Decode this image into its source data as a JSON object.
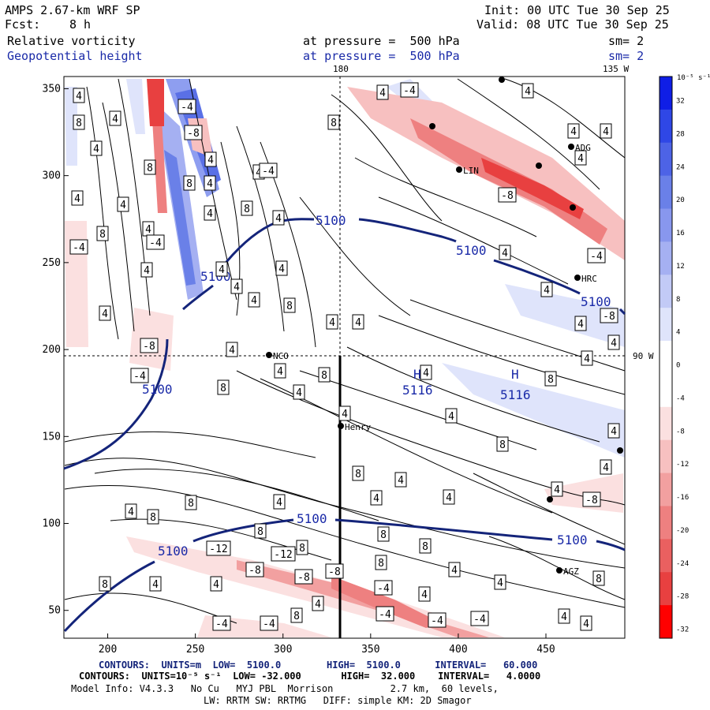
{
  "header": {
    "model": "AMPS 2.67-km WRF SP",
    "init": "Init: 00 UTC Tue 30 Sep 25",
    "fcst_label": "Fcst:",
    "fcst_value": "8 h",
    "valid": "Valid: 08 UTC Tue 30 Sep 25",
    "field1": "Relative vorticity",
    "field1_level": "at pressure =  500 hPa",
    "field1_smooth": "sm= 2",
    "field2": "Geopotential height",
    "field2_level": "at pressure =  500 hPa",
    "field2_smooth": "sm= 2",
    "lon180": "180",
    "lon135w": "135 W",
    "lat90s": "90 W"
  },
  "colors": {
    "height_contour": "#14247a",
    "neg_max": "#ff0000",
    "pos_max": "#0000ee"
  },
  "colorbar": {
    "unit": "10⁻⁵ s⁻¹",
    "tick_labels": [
      "32",
      "28",
      "24",
      "20",
      "16",
      "12",
      "8",
      "4",
      "0",
      "-4",
      "-8",
      "-12",
      "-16",
      "-20",
      "-24",
      "-28",
      "-32"
    ],
    "colors": [
      "#0f1ee6",
      "#2f47e6",
      "#4d63e6",
      "#6a80e8",
      "#8897ee",
      "#a5b0f2",
      "#c2caf6",
      "#dfe4fb",
      "#ffffff",
      "#ffffff",
      "#fbe0e0",
      "#f7c0c0",
      "#f2a0a0",
      "#ee8080",
      "#ea6060",
      "#e84040",
      "#ff0000"
    ]
  },
  "stations": [
    {
      "name": "NCO",
      "x": 341,
      "y": 450
    },
    {
      "name": "Henry",
      "x": 432,
      "y": 540
    },
    {
      "name": "LIN",
      "x": 582,
      "y": 215
    },
    {
      "name": "ADG",
      "x": 724,
      "y": 186
    },
    {
      "name": "HRC",
      "x": 732,
      "y": 352
    },
    {
      "name": "AGZ",
      "x": 709,
      "y": 723
    }
  ],
  "station_names": [
    "NCO",
    "Henry",
    "LIN",
    "ADG",
    "HRC",
    "AGZ"
  ],
  "chart_data": {
    "type": "contour",
    "title": "Relative vorticity and Geopotential height at 500 hPa",
    "x_ticks": [
      200,
      250,
      300,
      350,
      400,
      450
    ],
    "y_ticks": [
      50,
      100,
      150,
      200,
      250,
      300,
      350
    ],
    "xlim": [
      175,
      495
    ],
    "ylim": [
      34,
      357
    ],
    "height_contours": {
      "units": "m",
      "low": 5100.0,
      "high": 5100.0,
      "interval": 60.0,
      "labels": [
        "5100",
        "5100",
        "5100",
        "5100",
        "5100",
        "5100",
        "5100",
        "5100"
      ],
      "high_centers": [
        "5116",
        "5116"
      ]
    },
    "vorticity_contours": {
      "units": "10^-5 s^-1",
      "low": -32.0,
      "high": 32.0,
      "interval": 4.0,
      "labels_pos": [
        "4",
        "8",
        "4",
        "4",
        "8",
        "4",
        "8",
        "4",
        "4",
        "4",
        "4",
        "8",
        "4",
        "4",
        "4",
        "8",
        "4",
        "4",
        "4",
        "8",
        "4",
        "4",
        "4",
        "4",
        "8",
        "4",
        "4",
        "4",
        "4",
        "8",
        "4",
        "8",
        "4",
        "4",
        "4",
        "8",
        "8",
        "4",
        "4",
        "4",
        "4",
        "4",
        "4",
        "4",
        "4",
        "4",
        "4",
        "4",
        "8",
        "4",
        "8",
        "4",
        "8",
        "8",
        "4",
        "4",
        "8",
        "8",
        "8",
        "8",
        "4",
        "4",
        "4"
      ],
      "labels_neg": [
        "-4",
        "-8",
        "-4",
        "-4",
        "-8",
        "-4",
        "-8",
        "-4",
        "-4",
        "-8",
        "-4",
        "-4",
        "-4",
        "-8",
        "-12",
        "-12",
        "-8",
        "-8",
        "-4",
        "-4"
      ]
    }
  },
  "footer": {
    "line1": "CONTOURS:  UNITS=m  LOW=  5100.0        HIGH=  5100.0      INTERVAL=   60.000",
    "line2": "CONTOURS:  UNITS=10⁻⁵ s⁻¹  LOW= -32.000       HIGH=  32.000    INTERVAL=   4.0000",
    "line3": "Model Info: V4.3.3   No Cu   MYJ PBL  Morrison          2.7 km,  60 levels,",
    "line4": "LW: RRTM SW: RRTMG   DIFF: simple KM: 2D Smagor"
  }
}
